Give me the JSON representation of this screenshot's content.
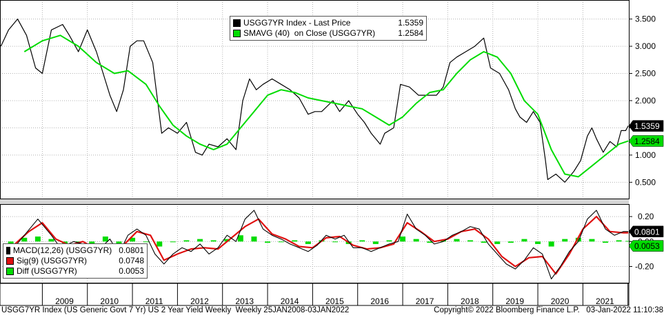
{
  "chart_data": [
    {
      "type": "line",
      "title": "",
      "xlabel": "",
      "ylabel": "",
      "x_ticks": [
        "2009",
        "2010",
        "2011",
        "2012",
        "2013",
        "2014",
        "2015",
        "2016",
        "2017",
        "2018",
        "2019",
        "2020",
        "2021"
      ],
      "y_ticks": [
        "0.500",
        "1.000",
        "1.500",
        "2.000",
        "2.500",
        "3.000",
        "3.500"
      ],
      "ylim": [
        0.2,
        3.85
      ],
      "grid": true,
      "legend_position": "top-center",
      "series": [
        {
          "name": "USGG7YR Index - Last Price",
          "last_value": "1.5359",
          "color": "#000000",
          "x": [
            2008.08,
            2008.25,
            2008.45,
            2008.65,
            2008.85,
            2009.0,
            2009.2,
            2009.45,
            2009.6,
            2009.8,
            2010.0,
            2010.2,
            2010.35,
            2010.5,
            2010.65,
            2010.8,
            2010.95,
            2011.1,
            2011.25,
            2011.45,
            2011.65,
            2011.8,
            2012.0,
            2012.2,
            2012.4,
            2012.55,
            2012.7,
            2012.9,
            2013.1,
            2013.3,
            2013.45,
            2013.6,
            2013.75,
            2013.9,
            2014.1,
            2014.3,
            2014.5,
            2014.7,
            2014.9,
            2015.05,
            2015.2,
            2015.45,
            2015.6,
            2015.8,
            2016.0,
            2016.15,
            2016.3,
            2016.5,
            2016.6,
            2016.8,
            2016.95,
            2017.15,
            2017.35,
            2017.55,
            2017.75,
            2017.9,
            2018.05,
            2018.2,
            2018.4,
            2018.6,
            2018.8,
            2018.95,
            2019.15,
            2019.35,
            2019.5,
            2019.6,
            2019.75,
            2019.9,
            2020.05,
            2020.17,
            2020.22,
            2020.4,
            2020.6,
            2020.8,
            2020.95,
            2021.1,
            2021.2,
            2021.3,
            2021.45,
            2021.6,
            2021.75,
            2021.85,
            2021.95,
            2022.01
          ],
          "values": [
            3.0,
            3.3,
            3.5,
            3.2,
            2.6,
            2.5,
            3.3,
            3.4,
            3.2,
            2.9,
            3.3,
            2.9,
            2.5,
            2.1,
            1.8,
            2.2,
            3.0,
            3.1,
            3.1,
            2.7,
            1.4,
            1.5,
            1.4,
            1.6,
            1.05,
            1.0,
            1.2,
            1.15,
            1.3,
            1.1,
            2.0,
            2.4,
            2.2,
            2.3,
            2.4,
            2.3,
            2.2,
            2.05,
            1.75,
            1.8,
            1.8,
            2.0,
            1.8,
            2.0,
            1.75,
            1.6,
            1.4,
            1.2,
            1.4,
            1.5,
            2.3,
            2.25,
            2.1,
            2.1,
            2.1,
            2.25,
            2.7,
            2.8,
            2.9,
            3.0,
            3.15,
            2.6,
            2.5,
            2.2,
            1.85,
            1.7,
            1.6,
            1.8,
            1.6,
            0.9,
            0.55,
            0.65,
            0.5,
            0.7,
            0.9,
            1.35,
            1.5,
            1.3,
            1.05,
            1.25,
            1.15,
            1.45,
            1.45,
            1.54
          ]
        },
        {
          "name": "SMAVG (40)  on Close (USGG7YR)",
          "last_value": "1.2584",
          "color": "#00dc00",
          "x": [
            2008.6,
            2009.0,
            2009.4,
            2009.8,
            2010.2,
            2010.6,
            2010.9,
            2011.3,
            2011.6,
            2011.9,
            2012.2,
            2012.5,
            2012.8,
            2013.1,
            2013.4,
            2013.7,
            2014.0,
            2014.3,
            2014.6,
            2014.9,
            2015.2,
            2015.5,
            2015.8,
            2016.1,
            2016.4,
            2016.7,
            2017.0,
            2017.3,
            2017.6,
            2017.9,
            2018.2,
            2018.5,
            2018.8,
            2019.1,
            2019.4,
            2019.7,
            2020.0,
            2020.3,
            2020.6,
            2020.9,
            2021.2,
            2021.5,
            2021.8,
            2022.01
          ],
          "values": [
            2.9,
            3.1,
            3.2,
            3.0,
            2.7,
            2.5,
            2.55,
            2.3,
            1.9,
            1.55,
            1.35,
            1.2,
            1.1,
            1.2,
            1.5,
            1.8,
            2.1,
            2.2,
            2.15,
            2.05,
            2.0,
            1.95,
            1.9,
            1.85,
            1.7,
            1.55,
            1.7,
            1.95,
            2.15,
            2.2,
            2.5,
            2.75,
            2.9,
            2.8,
            2.5,
            2.0,
            1.75,
            1.1,
            0.65,
            0.6,
            0.8,
            1.0,
            1.2,
            1.26
          ]
        }
      ]
    },
    {
      "type": "line",
      "title": "",
      "y_ticks": [
        "0.20",
        "0.00",
        "-0.20"
      ],
      "ylim": [
        -0.33,
        0.3
      ],
      "grid": true,
      "legend_position": "bottom-left",
      "series": [
        {
          "name": "MACD(12,26) (USGG7YR)",
          "last_value": "0.0801",
          "color": "#000000",
          "x": [
            2008.3,
            2008.6,
            2008.9,
            2009.2,
            2009.4,
            2009.7,
            2009.9,
            2010.1,
            2010.3,
            2010.5,
            2010.7,
            2010.9,
            2011.1,
            2011.3,
            2011.5,
            2011.7,
            2011.9,
            2012.1,
            2012.3,
            2012.5,
            2012.7,
            2012.9,
            2013.1,
            2013.3,
            2013.5,
            2013.7,
            2013.9,
            2014.1,
            2014.3,
            2014.5,
            2014.7,
            2014.9,
            2015.1,
            2015.3,
            2015.5,
            2015.7,
            2015.9,
            2016.1,
            2016.3,
            2016.5,
            2016.7,
            2016.9,
            2017.1,
            2017.3,
            2017.5,
            2017.7,
            2017.9,
            2018.1,
            2018.3,
            2018.5,
            2018.7,
            2018.9,
            2019.1,
            2019.3,
            2019.5,
            2019.7,
            2019.9,
            2020.1,
            2020.3,
            2020.5,
            2020.7,
            2020.9,
            2021.1,
            2021.3,
            2021.5,
            2021.7,
            2021.9,
            2022.01
          ],
          "values": [
            -0.08,
            0.05,
            0.18,
            0.05,
            -0.05,
            0.0,
            -0.02,
            -0.1,
            -0.05,
            0.02,
            -0.1,
            0.05,
            0.1,
            0.05,
            -0.1,
            -0.18,
            -0.1,
            -0.05,
            -0.08,
            -0.02,
            -0.1,
            -0.05,
            0.05,
            0.0,
            0.18,
            0.25,
            0.1,
            0.05,
            0.02,
            -0.02,
            -0.05,
            -0.08,
            -0.03,
            0.05,
            0.02,
            0.05,
            -0.05,
            -0.05,
            -0.08,
            -0.05,
            -0.02,
            0.0,
            0.22,
            0.1,
            0.05,
            -0.02,
            0.0,
            0.05,
            0.08,
            0.12,
            0.1,
            -0.02,
            -0.1,
            -0.18,
            -0.22,
            -0.15,
            -0.05,
            -0.1,
            -0.3,
            -0.2,
            -0.08,
            0.0,
            0.18,
            0.25,
            0.1,
            0.05,
            0.08,
            0.08
          ]
        },
        {
          "name": "Sig(9) (USGG7YR)",
          "last_value": "0.0748",
          "color": "#e01010",
          "x": [
            2008.3,
            2008.7,
            2009.0,
            2009.3,
            2009.6,
            2009.9,
            2010.2,
            2010.5,
            2010.8,
            2011.1,
            2011.4,
            2011.7,
            2012.0,
            2012.3,
            2012.6,
            2012.9,
            2013.2,
            2013.5,
            2013.8,
            2014.1,
            2014.4,
            2014.7,
            2015.0,
            2015.3,
            2015.6,
            2015.9,
            2016.2,
            2016.5,
            2016.8,
            2017.1,
            2017.4,
            2017.7,
            2018.0,
            2018.3,
            2018.6,
            2018.9,
            2019.2,
            2019.5,
            2019.8,
            2020.1,
            2020.4,
            2020.7,
            2021.0,
            2021.3,
            2021.6,
            2021.9,
            2022.01
          ],
          "values": [
            -0.05,
            0.08,
            0.15,
            0.02,
            -0.03,
            0.0,
            -0.06,
            -0.02,
            -0.03,
            0.08,
            0.05,
            -0.15,
            -0.1,
            -0.06,
            -0.05,
            -0.06,
            0.03,
            0.12,
            0.18,
            0.06,
            0.02,
            -0.04,
            -0.05,
            0.03,
            0.04,
            -0.03,
            -0.06,
            -0.05,
            -0.02,
            0.15,
            0.08,
            0.0,
            0.02,
            0.08,
            0.1,
            0.02,
            -0.12,
            -0.2,
            -0.13,
            -0.12,
            -0.26,
            -0.1,
            0.1,
            0.2,
            0.08,
            0.07,
            0.07
          ]
        },
        {
          "name": "Diff (USGG7YR)",
          "last_value": "0.0053",
          "color": "#00dc00",
          "x": [
            2008.3,
            2008.6,
            2008.9,
            2009.2,
            2009.5,
            2009.8,
            2010.1,
            2010.4,
            2010.7,
            2011.0,
            2011.3,
            2011.6,
            2011.9,
            2012.2,
            2012.5,
            2012.8,
            2013.1,
            2013.4,
            2013.7,
            2014.0,
            2014.3,
            2014.6,
            2014.9,
            2015.2,
            2015.5,
            2015.8,
            2016.1,
            2016.4,
            2016.7,
            2017.0,
            2017.3,
            2017.6,
            2017.9,
            2018.2,
            2018.5,
            2018.8,
            2019.1,
            2019.4,
            2019.7,
            2020.0,
            2020.3,
            2020.6,
            2020.9,
            2021.2,
            2021.5,
            2021.8,
            2022.01
          ],
          "values": [
            -0.03,
            0.03,
            0.04,
            0.02,
            -0.02,
            0.0,
            -0.04,
            0.04,
            -0.05,
            0.03,
            0.0,
            -0.04,
            0.0,
            0.01,
            0.02,
            0.01,
            0.02,
            0.05,
            0.04,
            -0.01,
            0.0,
            0.01,
            -0.02,
            0.01,
            0.0,
            -0.02,
            0.01,
            -0.02,
            0.01,
            0.04,
            0.02,
            -0.01,
            0.01,
            0.02,
            0.01,
            -0.01,
            -0.02,
            -0.01,
            0.02,
            -0.02,
            -0.04,
            0.02,
            0.03,
            0.02,
            -0.01,
            0.01,
            0.005
          ]
        }
      ]
    }
  ],
  "legend_top": {
    "items": [
      {
        "label": "USGG7YR Index - Last Price",
        "value": "1.5359",
        "color": "#000000"
      },
      {
        "label": "SMAVG (40)  on Close (USGG7YR)",
        "value": "1.2584",
        "color": "#00dc00"
      }
    ]
  },
  "legend_bottom": {
    "items": [
      {
        "label": "MACD(12,26) (USGG7YR)",
        "value": "0.0801",
        "color": "#000000"
      },
      {
        "label": "Sig(9) (USGG7YR)",
        "value": "0.0748",
        "color": "#e01010"
      },
      {
        "label": "Diff (USGG7YR)",
        "value": "0.0053",
        "color": "#00dc00"
      }
    ]
  },
  "footer": {
    "left": "USGG7YR Index (US Generic Govt 7 Yr) US 2 Year Yield Weekly  Weekly 25JAN2008-03JAN2022",
    "right": "Copyright© 2022 Bloomberg Finance L.P.   03-Jan-2022 11:10:38"
  }
}
